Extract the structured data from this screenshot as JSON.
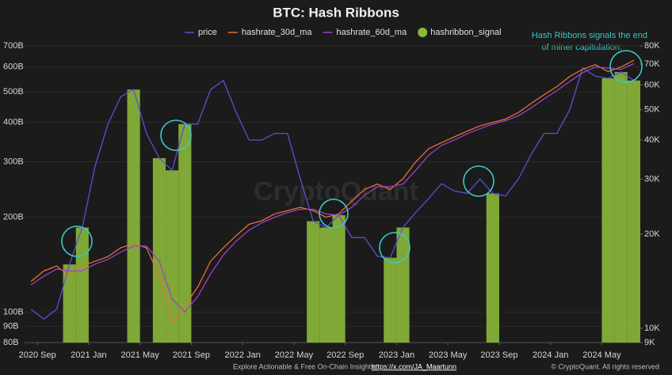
{
  "chart_data": {
    "type": "line",
    "title": "BTC: Hash Ribbons",
    "annotation": [
      "Hash Ribbons signals the end",
      "of miner capitulation."
    ],
    "watermark": "CryptoQuant",
    "footer": {
      "text": "Explore Actionable & Free On-Chain Insights:",
      "link": "https://x.com/JA_Maartunn",
      "copyright": "© CryptoQuant. All rights reserved"
    },
    "log_scale": true,
    "grid": true,
    "x": [
      "2020-08",
      "2020-09",
      "2020-10",
      "2020-11",
      "2020-12",
      "2021-01",
      "2021-02",
      "2021-03",
      "2021-04",
      "2021-05",
      "2021-06",
      "2021-07",
      "2021-08",
      "2021-09",
      "2021-10",
      "2021-11",
      "2021-12",
      "2022-01",
      "2022-02",
      "2022-03",
      "2022-04",
      "2022-05",
      "2022-06",
      "2022-07",
      "2022-08",
      "2022-09",
      "2022-10",
      "2022-11",
      "2022-12",
      "2023-01",
      "2023-02",
      "2023-03",
      "2023-04",
      "2023-05",
      "2023-06",
      "2023-07",
      "2023-08",
      "2023-09",
      "2023-10",
      "2023-11",
      "2023-12",
      "2024-01",
      "2024-02",
      "2024-03",
      "2024-04",
      "2024-05",
      "2024-06",
      "2024-07"
    ],
    "xlim": [
      "2020-08",
      "2024-08"
    ],
    "xticks": [
      {
        "value": "2020-09",
        "label": "2020 Sep"
      },
      {
        "value": "2021-01",
        "label": "2021 Jan"
      },
      {
        "value": "2021-05",
        "label": "2021 May"
      },
      {
        "value": "2021-09",
        "label": "2021 Sep"
      },
      {
        "value": "2022-01",
        "label": "2022 Jan"
      },
      {
        "value": "2022-05",
        "label": "2022 May"
      },
      {
        "value": "2022-09",
        "label": "2022 Sep"
      },
      {
        "value": "2023-01",
        "label": "2023 Jan"
      },
      {
        "value": "2023-05",
        "label": "2023 May"
      },
      {
        "value": "2023-09",
        "label": "2023 Sep"
      },
      {
        "value": "2024-01",
        "label": "2024 Jan"
      },
      {
        "value": "2024-05",
        "label": "2024 May"
      }
    ],
    "ylim": [
      80000000000,
      700000000000
    ],
    "yticks": [
      {
        "value": 80000000000,
        "label": "80B"
      },
      {
        "value": 90000000000,
        "label": "90B"
      },
      {
        "value": 100000000000,
        "label": "100B"
      },
      {
        "value": 200000000000,
        "label": "200B"
      },
      {
        "value": 300000000000,
        "label": "300B"
      },
      {
        "value": 400000000000,
        "label": "400B"
      },
      {
        "value": 500000000000,
        "label": "500B"
      },
      {
        "value": 600000000000,
        "label": "600B"
      },
      {
        "value": 700000000000,
        "label": "700B"
      }
    ],
    "y2lim": [
      9000,
      80000
    ],
    "y2ticks": [
      {
        "value": 9000,
        "label": "9K"
      },
      {
        "value": 10000,
        "label": "10K"
      },
      {
        "value": 20000,
        "label": "20K"
      },
      {
        "value": 30000,
        "label": "30K"
      },
      {
        "value": 40000,
        "label": "40K"
      },
      {
        "value": 50000,
        "label": "50K"
      },
      {
        "value": 60000,
        "label": "60K"
      },
      {
        "value": 70000,
        "label": "70K"
      },
      {
        "value": 80000,
        "label": "80K"
      }
    ],
    "series": [
      {
        "name": "price",
        "color": "#5b4fd6",
        "axis": "y2",
        "type": "line",
        "values": [
          11500,
          10700,
          11500,
          16000,
          21000,
          33000,
          45000,
          55000,
          58000,
          42000,
          35000,
          32000,
          45000,
          45000,
          58000,
          62000,
          49000,
          40000,
          40000,
          42000,
          42000,
          30000,
          22000,
          21000,
          23000,
          19500,
          19500,
          17000,
          16800,
          21000,
          23500,
          26000,
          29000,
          27500,
          27000,
          30000,
          27000,
          26500,
          30000,
          36000,
          42000,
          42000,
          50000,
          68000,
          64000,
          63000,
          66000,
          62000
        ]
      },
      {
        "name": "hashrate_30d_ma",
        "color": "#e2713b",
        "type": "line",
        "values": [
          125000000000,
          135000000000,
          140000000000,
          130000000000,
          140000000000,
          145000000000,
          150000000000,
          160000000000,
          165000000000,
          160000000000,
          130000000000,
          92000000000,
          105000000000,
          120000000000,
          145000000000,
          160000000000,
          175000000000,
          190000000000,
          195000000000,
          205000000000,
          210000000000,
          215000000000,
          210000000000,
          200000000000,
          205000000000,
          225000000000,
          245000000000,
          255000000000,
          245000000000,
          265000000000,
          300000000000,
          330000000000,
          345000000000,
          360000000000,
          375000000000,
          390000000000,
          400000000000,
          410000000000,
          430000000000,
          460000000000,
          490000000000,
          520000000000,
          560000000000,
          590000000000,
          610000000000,
          580000000000,
          600000000000,
          630000000000
        ]
      },
      {
        "name": "hashrate_60d_ma",
        "color": "#a040c8",
        "type": "line",
        "values": [
          122000000000,
          130000000000,
          137000000000,
          135000000000,
          135000000000,
          142000000000,
          147000000000,
          155000000000,
          162000000000,
          162000000000,
          145000000000,
          110000000000,
          100000000000,
          112000000000,
          132000000000,
          152000000000,
          168000000000,
          182000000000,
          192000000000,
          200000000000,
          207000000000,
          212000000000,
          212000000000,
          205000000000,
          203000000000,
          215000000000,
          235000000000,
          250000000000,
          250000000000,
          255000000000,
          282000000000,
          315000000000,
          338000000000,
          352000000000,
          368000000000,
          382000000000,
          395000000000,
          405000000000,
          420000000000,
          445000000000,
          475000000000,
          505000000000,
          540000000000,
          575000000000,
          600000000000,
          595000000000,
          590000000000,
          615000000000
        ]
      },
      {
        "name": "hashribbon_signal",
        "color": "#8bb83a",
        "axis": "y2",
        "type": "bar",
        "values": [
          null,
          null,
          null,
          16000,
          21000,
          null,
          null,
          null,
          58000,
          null,
          35000,
          32000,
          45000,
          null,
          null,
          null,
          null,
          null,
          null,
          null,
          null,
          null,
          22000,
          21000,
          23000,
          null,
          null,
          null,
          16800,
          21000,
          null,
          null,
          null,
          null,
          null,
          null,
          27000,
          null,
          null,
          null,
          null,
          null,
          null,
          null,
          null,
          63000,
          66000,
          62000
        ]
      }
    ]
  }
}
